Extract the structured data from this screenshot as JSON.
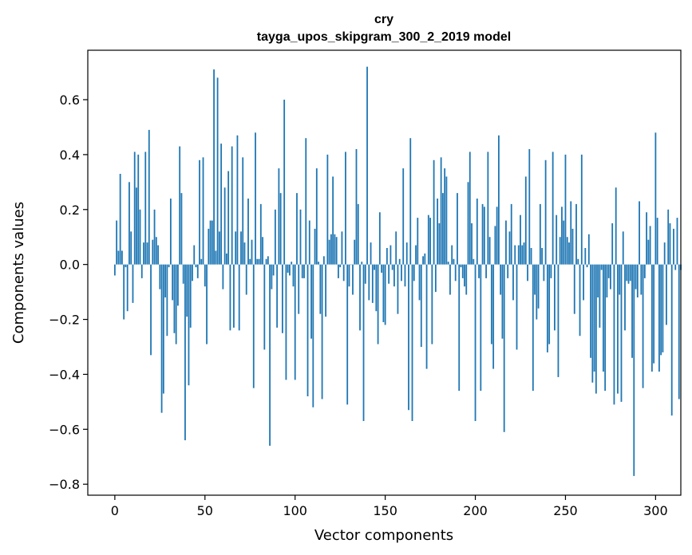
{
  "chart_data": {
    "type": "bar",
    "title": "cry",
    "subtitle": "tayga_upos_skipgram_300_2_2019 model",
    "xlabel": "Vector components",
    "ylabel": "Components values",
    "xlim": [
      -15,
      314
    ],
    "ylim": [
      -0.84,
      0.78
    ],
    "xticks": [
      0,
      50,
      100,
      150,
      200,
      250,
      300
    ],
    "xtick_labels": [
      "0",
      "50",
      "100",
      "150",
      "200",
      "250",
      "300"
    ],
    "yticks": [
      -0.8,
      -0.6,
      -0.4,
      -0.2,
      0.0,
      0.2,
      0.4,
      0.6
    ],
    "ytick_labels": [
      "−0.8",
      "−0.6",
      "−0.4",
      "−0.2",
      "0.0",
      "0.2",
      "0.4",
      "0.6"
    ],
    "bar_color": "#1f77b4",
    "values": [
      -0.04,
      0.16,
      0.05,
      0.33,
      0.05,
      -0.2,
      -0.01,
      -0.17,
      0.3,
      0.12,
      -0.14,
      0.41,
      0.28,
      0.4,
      0.2,
      -0.05,
      0.08,
      0.41,
      0.08,
      0.49,
      -0.33,
      0.09,
      0.2,
      0.1,
      0.07,
      -0.09,
      -0.54,
      -0.47,
      -0.12,
      -0.26,
      -0.01,
      0.24,
      -0.13,
      -0.25,
      -0.29,
      -0.15,
      0.43,
      0.26,
      -0.07,
      -0.64,
      -0.19,
      -0.44,
      -0.23,
      -0.06,
      0.07,
      -0.01,
      -0.05,
      0.38,
      0.02,
      0.39,
      -0.08,
      -0.29,
      0.13,
      0.16,
      0.16,
      0.71,
      0.05,
      0.68,
      0.12,
      0.44,
      -0.09,
      0.28,
      0.04,
      0.34,
      -0.24,
      0.43,
      -0.23,
      0.12,
      0.47,
      -0.24,
      0.12,
      0.39,
      0.08,
      -0.11,
      0.24,
      0.02,
      0.09,
      -0.45,
      0.48,
      0.02,
      0.02,
      0.22,
      0.1,
      -0.31,
      0.02,
      0.03,
      -0.66,
      -0.09,
      -0.04,
      0.2,
      -0.23,
      0.35,
      0.26,
      -0.25,
      0.6,
      -0.42,
      -0.03,
      -0.04,
      0.01,
      -0.08,
      -0.42,
      0.26,
      -0.18,
      0.2,
      -0.05,
      -0.05,
      0.46,
      -0.48,
      0.16,
      -0.27,
      -0.52,
      0.13,
      0.35,
      0.01,
      -0.18,
      -0.49,
      0.03,
      -0.19,
      0.4,
      0.09,
      0.11,
      0.32,
      0.11,
      0.1,
      -0.05,
      -0.01,
      0.12,
      -0.06,
      0.41,
      -0.51,
      -0.08,
      0.0,
      -0.11,
      0.09,
      0.42,
      0.22,
      -0.24,
      0.01,
      -0.57,
      -0.07,
      0.72,
      -0.13,
      0.08,
      -0.14,
      -0.02,
      -0.17,
      -0.29,
      0.19,
      -0.03,
      -0.21,
      -0.22,
      0.06,
      -0.07,
      0.07,
      -0.02,
      -0.08,
      0.12,
      -0.18,
      0.02,
      -0.06,
      0.35,
      -0.08,
      0.08,
      -0.53,
      0.46,
      -0.57,
      -0.06,
      0.07,
      0.17,
      -0.13,
      -0.3,
      0.03,
      0.04,
      -0.38,
      0.18,
      0.17,
      -0.29,
      0.38,
      -0.1,
      0.24,
      0.15,
      0.39,
      0.26,
      0.35,
      0.32,
      0.01,
      -0.11,
      0.07,
      0.02,
      -0.06,
      0.26,
      -0.46,
      -0.01,
      -0.05,
      -0.08,
      -0.11,
      0.3,
      0.41,
      0.15,
      0.02,
      -0.57,
      0.24,
      -0.05,
      -0.46,
      0.22,
      0.21,
      -0.05,
      0.41,
      0.1,
      -0.29,
      -0.38,
      0.14,
      0.21,
      0.47,
      -0.11,
      -0.27,
      -0.61,
      0.16,
      -0.05,
      0.12,
      0.22,
      -0.13,
      0.07,
      -0.31,
      0.07,
      0.18,
      0.07,
      0.08,
      0.32,
      -0.06,
      0.42,
      0.06,
      -0.46,
      -0.11,
      -0.2,
      -0.16,
      0.22,
      0.06,
      -0.06,
      0.38,
      -0.32,
      -0.29,
      -0.05,
      0.41,
      -0.24,
      0.18,
      -0.41,
      0.1,
      0.21,
      0.16,
      0.4,
      0.1,
      0.08,
      0.23,
      0.13,
      -0.18,
      0.22,
      0.02,
      -0.26,
      0.4,
      -0.13,
      0.06,
      -0.01,
      0.11,
      -0.34,
      -0.43,
      -0.39,
      -0.47,
      -0.12,
      -0.23,
      -0.02,
      -0.39,
      -0.46,
      -0.12,
      -0.05,
      -0.09,
      0.15,
      -0.51,
      0.28,
      -0.47,
      -0.11,
      -0.5,
      0.12,
      -0.24,
      -0.06,
      -0.07,
      -0.06,
      -0.34,
      -0.77,
      -0.09,
      -0.12,
      0.23,
      -0.11,
      -0.45,
      -0.05,
      0.19,
      0.09,
      0.14,
      -0.39,
      -0.36,
      0.48,
      0.17,
      -0.39,
      -0.33,
      -0.32,
      0.08,
      -0.22,
      0.2,
      0.15,
      -0.55,
      0.13,
      -0.02,
      0.17,
      -0.49,
      -0.02
    ]
  }
}
